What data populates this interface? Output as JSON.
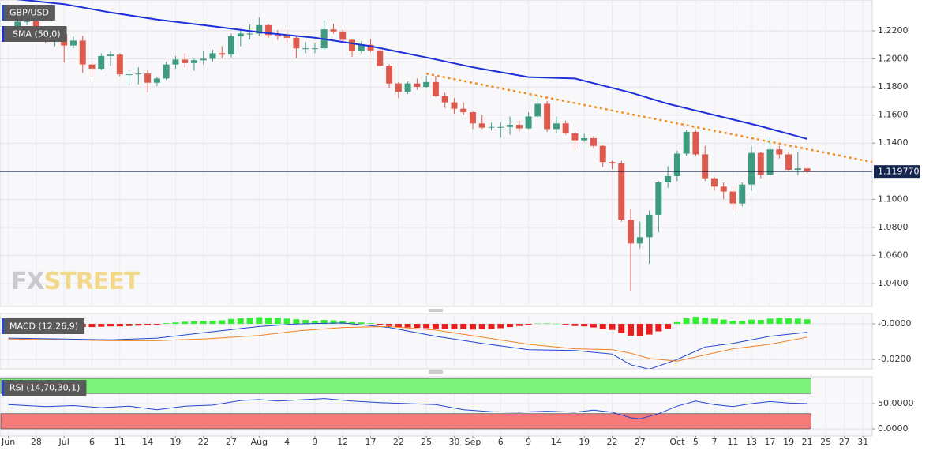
{
  "chart_data": [
    {
      "type": "candlestick",
      "title": "GBP/USD",
      "ylim": [
        1.0237,
        1.2419
      ],
      "yticks": [
        {
          "value": 1.22,
          "label": "1.2200"
        },
        {
          "value": 1.2,
          "label": "1.2000"
        },
        {
          "value": 1.18,
          "label": "1.1800"
        },
        {
          "value": 1.16,
          "label": "1.1600"
        },
        {
          "value": 1.14,
          "label": "1.1400"
        },
        {
          "value": 1.1,
          "label": "1.1000"
        },
        {
          "value": 1.08,
          "label": "1.0800"
        },
        {
          "value": 1.06,
          "label": "1.0600"
        },
        {
          "value": 1.04,
          "label": "1.0400"
        }
      ],
      "xlim": [
        -1.9,
        92
      ],
      "xticks": [
        {
          "value": -1,
          "label": "Jun"
        },
        {
          "value": 2,
          "label": "28"
        },
        {
          "value": 5,
          "label": "Jul"
        },
        {
          "value": 8,
          "label": "6"
        },
        {
          "value": 11,
          "label": "11"
        },
        {
          "value": 14,
          "label": "14"
        },
        {
          "value": 17,
          "label": "19"
        },
        {
          "value": 20,
          "label": "22"
        },
        {
          "value": 23,
          "label": "27"
        },
        {
          "value": 26,
          "label": "Aug"
        },
        {
          "value": 29,
          "label": "4"
        },
        {
          "value": 32,
          "label": "9"
        },
        {
          "value": 35,
          "label": "12"
        },
        {
          "value": 38,
          "label": "17"
        },
        {
          "value": 41,
          "label": "22"
        },
        {
          "value": 44,
          "label": "25"
        },
        {
          "value": 47,
          "label": "30"
        },
        {
          "value": 49,
          "label": "Sep"
        },
        {
          "value": 52,
          "label": "6"
        },
        {
          "value": 55,
          "label": "9"
        },
        {
          "value": 58,
          "label": "14"
        },
        {
          "value": 61,
          "label": "19"
        },
        {
          "value": 64,
          "label": "22"
        },
        {
          "value": 67,
          "label": "27"
        },
        {
          "value": 71,
          "label": "Oct"
        },
        {
          "value": 73,
          "label": "5"
        },
        {
          "value": 75,
          "label": "7"
        },
        {
          "value": 77,
          "label": "11"
        },
        {
          "value": 79,
          "label": "13"
        },
        {
          "value": 81,
          "label": "17"
        },
        {
          "value": 83,
          "label": "19"
        },
        {
          "value": 85,
          "label": "21"
        },
        {
          "value": 87,
          "label": "25"
        },
        {
          "value": 89,
          "label": "27"
        },
        {
          "value": 91,
          "label": "31"
        }
      ],
      "up_color": "#3f9b80",
      "down_color": "#de5a4e",
      "open": [
        1.223,
        1.2265,
        1.2268,
        1.2185,
        1.2124,
        1.2177,
        1.2095,
        1.213,
        1.196,
        1.193,
        1.202,
        1.203,
        1.189,
        1.189,
        1.1895,
        1.183,
        1.186,
        1.196,
        1.1995,
        1.197,
        1.199,
        1.2,
        1.204,
        1.203,
        1.216,
        1.218,
        1.218,
        1.224,
        1.217,
        1.216,
        1.215,
        1.2075,
        1.2075,
        1.2075,
        1.221,
        1.2195,
        1.2135,
        1.2055,
        1.21,
        1.206,
        1.195,
        1.1825,
        1.1765,
        1.1825,
        1.18,
        1.1835,
        1.1735,
        1.169,
        1.1645,
        1.162,
        1.154,
        1.151,
        1.1515,
        1.1515,
        1.153,
        1.1505,
        1.159,
        1.168,
        1.15,
        1.154,
        1.147,
        1.142,
        1.1435,
        1.138,
        1.1265,
        1.1255,
        1.0855,
        1.0685,
        1.073,
        1.089,
        1.112,
        1.1165,
        1.1325,
        1.148,
        1.132,
        1.115,
        1.109,
        1.1055,
        1.097,
        1.1105,
        1.133,
        1.1175,
        1.1355,
        1.132,
        1.121,
        1.122
      ],
      "high": [
        1.23,
        1.233,
        1.231,
        1.221,
        1.219,
        1.219,
        1.216,
        1.2165,
        1.197,
        1.204,
        1.206,
        1.204,
        1.192,
        1.194,
        1.192,
        1.187,
        1.198,
        1.202,
        1.204,
        1.2,
        1.206,
        1.2065,
        1.209,
        1.218,
        1.221,
        1.2245,
        1.2295,
        1.225,
        1.2205,
        1.221,
        1.216,
        1.212,
        1.211,
        1.2275,
        1.225,
        1.221,
        1.214,
        1.2125,
        1.214,
        1.208,
        1.196,
        1.1835,
        1.184,
        1.186,
        1.188,
        1.188,
        1.176,
        1.172,
        1.169,
        1.1625,
        1.16,
        1.1545,
        1.155,
        1.159,
        1.156,
        1.162,
        1.174,
        1.17,
        1.159,
        1.156,
        1.148,
        1.1465,
        1.145,
        1.1385,
        1.1275,
        1.1275,
        1.0935,
        1.084,
        1.092,
        1.113,
        1.1235,
        1.1345,
        1.1495,
        1.149,
        1.138,
        1.116,
        1.112,
        1.109,
        1.112,
        1.138,
        1.134,
        1.144,
        1.138,
        1.1335,
        1.134,
        1.1235
      ],
      "low": [
        1.22,
        1.224,
        1.2165,
        1.211,
        1.209,
        1.1975,
        1.2075,
        1.19,
        1.1875,
        1.192,
        1.195,
        1.1875,
        1.181,
        1.182,
        1.176,
        1.1805,
        1.185,
        1.193,
        1.194,
        1.1915,
        1.196,
        1.198,
        1.2005,
        1.201,
        1.209,
        1.214,
        1.2165,
        1.215,
        1.2135,
        1.212,
        1.2005,
        1.204,
        1.204,
        1.206,
        1.218,
        1.211,
        1.2015,
        1.204,
        1.205,
        1.1945,
        1.179,
        1.172,
        1.175,
        1.178,
        1.179,
        1.173,
        1.165,
        1.161,
        1.16,
        1.15,
        1.15,
        1.149,
        1.144,
        1.146,
        1.148,
        1.15,
        1.158,
        1.148,
        1.147,
        1.146,
        1.135,
        1.141,
        1.136,
        1.123,
        1.1215,
        1.084,
        1.035,
        1.065,
        1.054,
        1.0765,
        1.108,
        1.113,
        1.131,
        1.131,
        1.113,
        1.106,
        1.1,
        1.0925,
        1.095,
        1.106,
        1.115,
        1.1175,
        1.129,
        1.12,
        1.117,
        1.1185
      ],
      "close": [
        1.2265,
        1.2268,
        1.2185,
        1.2124,
        1.2177,
        1.2095,
        1.213,
        1.196,
        1.193,
        1.202,
        1.203,
        1.189,
        1.189,
        1.1895,
        1.183,
        1.186,
        1.196,
        1.1995,
        1.197,
        1.199,
        1.2,
        1.204,
        1.203,
        1.216,
        1.218,
        1.218,
        1.224,
        1.217,
        1.216,
        1.215,
        1.2075,
        1.2075,
        1.2075,
        1.221,
        1.2195,
        1.2135,
        1.2055,
        1.21,
        1.206,
        1.195,
        1.1825,
        1.1765,
        1.1825,
        1.18,
        1.1835,
        1.1735,
        1.169,
        1.1645,
        1.162,
        1.154,
        1.151,
        1.1515,
        1.1515,
        1.153,
        1.1505,
        1.159,
        1.168,
        1.15,
        1.154,
        1.147,
        1.142,
        1.1435,
        1.138,
        1.1265,
        1.1255,
        1.0855,
        1.0685,
        1.073,
        1.089,
        1.112,
        1.1165,
        1.1325,
        1.148,
        1.132,
        1.115,
        1.109,
        1.1055,
        1.097,
        1.1105,
        1.133,
        1.1175,
        1.1355,
        1.132,
        1.121,
        1.122,
        1.1198
      ],
      "series": [
        {
          "name": "SMA (50,0)",
          "color": "#1c2fd8",
          "x": [
            -1,
            5,
            10,
            15,
            20,
            26,
            32,
            38,
            44,
            49,
            55,
            60,
            66,
            70,
            75,
            80,
            85
          ],
          "values": [
            1.243,
            1.239,
            1.233,
            1.228,
            1.224,
            1.219,
            1.215,
            1.209,
            1.201,
            1.194,
            1.187,
            1.186,
            1.176,
            1.168,
            1.16,
            1.152,
            1.143
          ]
        }
      ],
      "trendline": {
        "color": "#f28c1e",
        "x": [
          44,
          92
        ],
        "values": [
          1.1895,
          1.1265
        ]
      },
      "last_price": {
        "value": 1.11977,
        "label": "1.119770",
        "color": "#14254f"
      },
      "watermark": [
        "FX",
        "STREET"
      ]
    },
    {
      "type": "macd",
      "title": "MACD (12,26,9)",
      "ylim": [
        -0.0253,
        0.0058
      ],
      "yticks": [
        {
          "value": 0,
          "label": "-0.0000"
        },
        {
          "value": -0.02,
          "label": "-0.0200"
        }
      ],
      "histogram": {
        "up_color": "#33ee33",
        "down_color": "#e81c1c",
        "values": [
          -0.001,
          -0.001,
          -0.0012,
          -0.0014,
          -0.0014,
          -0.0016,
          -0.0016,
          -0.0018,
          -0.0018,
          -0.0016,
          -0.0014,
          -0.0014,
          -0.0012,
          -0.001,
          -0.0008,
          -0.0004,
          0.0004,
          0.0008,
          0.0012,
          0.0014,
          0.0016,
          0.0018,
          0.002,
          0.0028,
          0.0032,
          0.0034,
          0.0038,
          0.0036,
          0.0034,
          0.003,
          0.0026,
          0.0022,
          0.0018,
          0.0022,
          0.002,
          0.0016,
          0.001,
          0.0008,
          0.0004,
          -0.0006,
          -0.0012,
          -0.0018,
          -0.002,
          -0.0022,
          -0.0024,
          -0.0026,
          -0.0028,
          -0.003,
          -0.003,
          -0.0032,
          -0.003,
          -0.0028,
          -0.0024,
          -0.0018,
          -0.0012,
          -0.0006,
          0.0002,
          0.0003,
          0.0001,
          -0.0004,
          -0.0012,
          -0.0014,
          -0.002,
          -0.0028,
          -0.0034,
          -0.0052,
          -0.0066,
          -0.007,
          -0.006,
          -0.0042,
          -0.0026,
          0.001,
          0.0032,
          0.004,
          0.0036,
          0.003,
          0.0024,
          0.0018,
          0.0016,
          0.0024,
          0.0022,
          0.003,
          0.0034,
          0.0032,
          0.003,
          0.0026
        ]
      },
      "series": [
        {
          "color": "#2446d0",
          "x": [
            -1,
            5,
            10,
            15,
            20,
            26,
            30,
            35,
            40,
            45,
            50,
            55,
            60,
            64,
            66,
            68,
            71,
            74,
            77,
            81,
            85
          ],
          "values": [
            -0.008,
            -0.0085,
            -0.009,
            -0.008,
            -0.005,
            -0.0015,
            0.0,
            0.0005,
            -0.002,
            -0.007,
            -0.011,
            -0.0145,
            -0.015,
            -0.017,
            -0.023,
            -0.0255,
            -0.02,
            -0.013,
            -0.011,
            -0.007,
            -0.0047
          ]
        },
        {
          "color": "#f58220",
          "x": [
            -1,
            5,
            10,
            15,
            20,
            26,
            30,
            35,
            40,
            45,
            50,
            55,
            60,
            64,
            66,
            68,
            71,
            74,
            77,
            81,
            85
          ],
          "values": [
            -0.0085,
            -0.009,
            -0.0095,
            -0.0095,
            -0.0085,
            -0.0065,
            -0.004,
            -0.002,
            -0.0015,
            -0.0035,
            -0.0075,
            -0.0115,
            -0.014,
            -0.0145,
            -0.0165,
            -0.0195,
            -0.021,
            -0.0175,
            -0.014,
            -0.0115,
            -0.0075
          ]
        }
      ]
    },
    {
      "type": "rsi",
      "title": "RSI (14,70,30,1)",
      "ylim": [
        -14.1,
        103.1
      ],
      "yticks": [
        {
          "value": 50,
          "label": "50.0000"
        },
        {
          "value": 0,
          "label": "0.0000"
        }
      ],
      "bands": [
        {
          "from": 70,
          "to": 100,
          "color": "#7cf27c"
        },
        {
          "from": 0,
          "to": 30,
          "color": "#f57a7a"
        }
      ],
      "series": [
        {
          "color": "#2446d0",
          "x": [
            -1,
            3,
            6,
            9,
            12,
            15,
            18,
            21,
            24,
            26,
            28,
            30,
            33,
            36,
            39,
            42,
            45,
            48,
            51,
            54,
            57,
            60,
            62,
            64,
            66,
            67,
            69,
            71,
            73,
            75,
            77,
            79,
            81,
            83,
            85
          ],
          "values": [
            48,
            44,
            46,
            42,
            45,
            38,
            45,
            47,
            56,
            58,
            55,
            57,
            60,
            55,
            52,
            50,
            48,
            38,
            34,
            33,
            35,
            33,
            37,
            33,
            22,
            20,
            30,
            45,
            55,
            48,
            44,
            50,
            54,
            51,
            50
          ]
        }
      ]
    }
  ]
}
